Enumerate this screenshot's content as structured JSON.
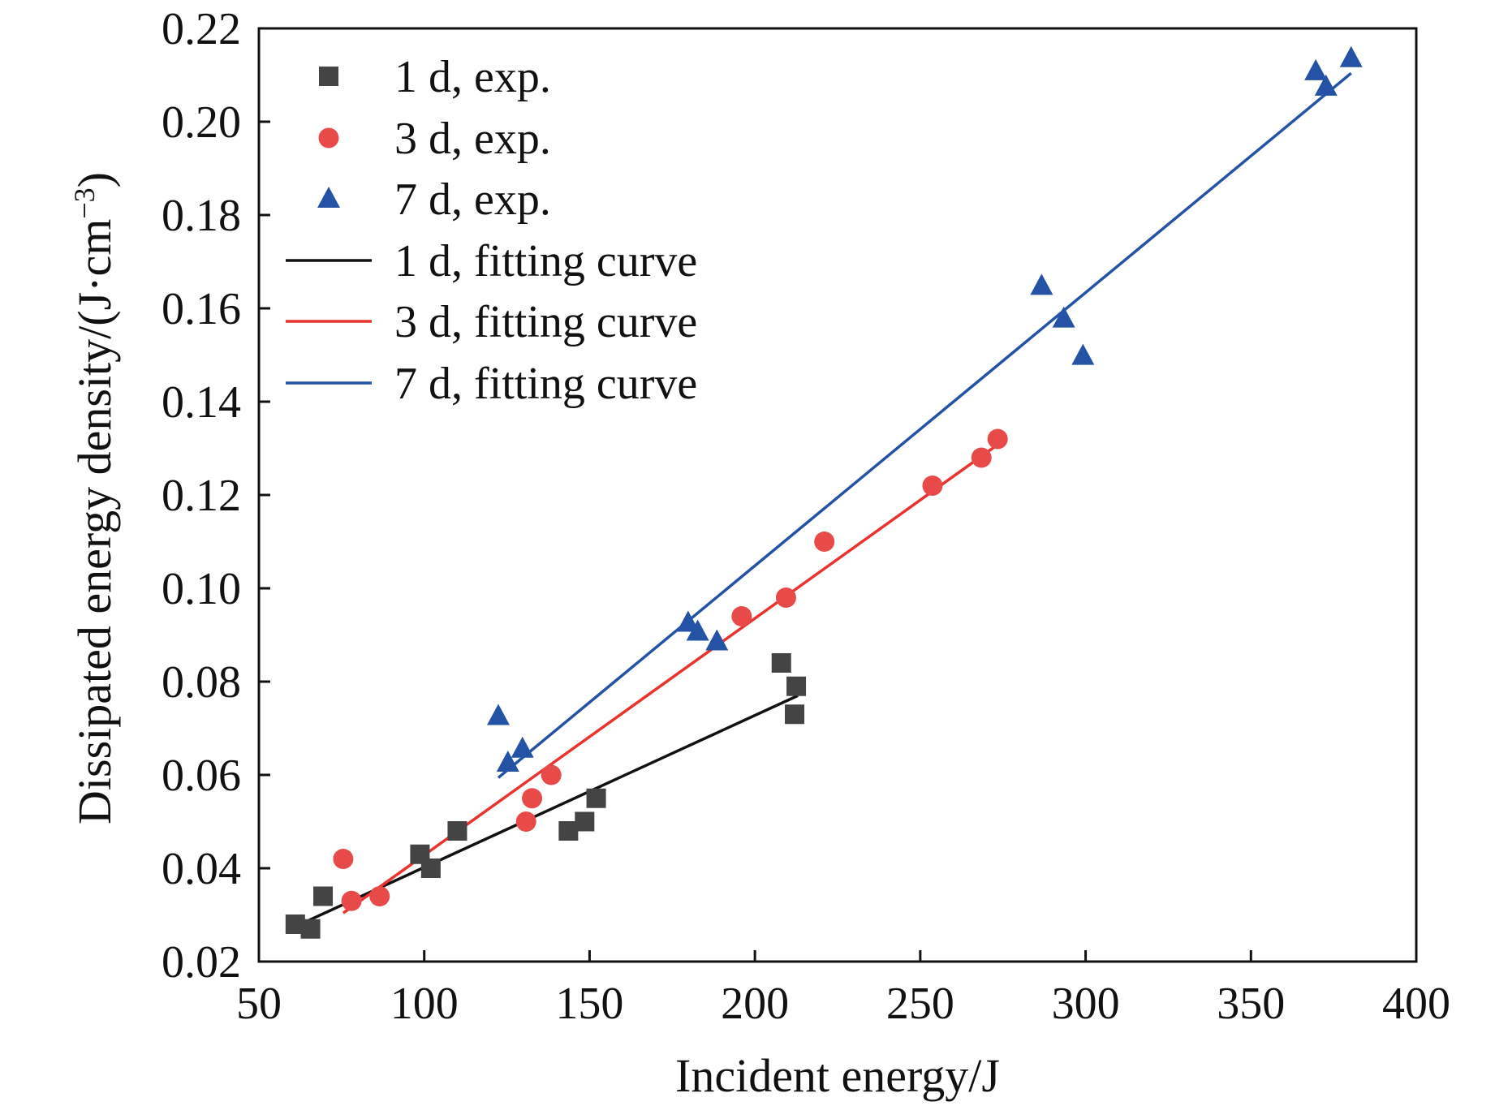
{
  "chart_data": {
    "type": "scatter",
    "xlabel": "Incident energy/J",
    "ylabel_main": "Dissipated energy density/(J·cm",
    "ylabel_sup": "−3",
    "ylabel_close": ")",
    "xlim": [
      50,
      400
    ],
    "ylim": [
      0.02,
      0.22
    ],
    "xticks": [
      "50",
      "100",
      "150",
      "200",
      "250",
      "300",
      "350",
      "400"
    ],
    "yticks": [
      "0.02",
      "0.04",
      "0.06",
      "0.08",
      "0.10",
      "0.12",
      "0.14",
      "0.16",
      "0.18",
      "0.20",
      "0.22"
    ],
    "grid": false,
    "legend_position": "top-left",
    "series": [
      {
        "name": "1 d, exp.",
        "kind": "points",
        "marker": "square",
        "color": "#444444",
        "x": [
          61,
          65.6,
          69.4,
          98.7,
          102,
          110,
          143.6,
          148.5,
          152,
          208,
          212.5,
          212
        ],
        "y": [
          0.028,
          0.027,
          0.034,
          0.043,
          0.04,
          0.048,
          0.048,
          0.05,
          0.055,
          0.084,
          0.079,
          0.073
        ]
      },
      {
        "name": "3 d, exp.",
        "kind": "points",
        "marker": "circle",
        "color": "#e84a4a",
        "x": [
          75.5,
          78,
          86.5,
          130.8,
          132.6,
          138.4,
          196,
          209.4,
          221,
          253.7,
          268.5,
          273.4
        ],
        "y": [
          0.042,
          0.033,
          0.034,
          0.05,
          0.055,
          0.06,
          0.094,
          0.098,
          0.11,
          0.122,
          0.128,
          0.132
        ]
      },
      {
        "name": "7 d, exp.",
        "kind": "points",
        "marker": "triangle",
        "color": "#2453a6",
        "x": [
          122.4,
          125.3,
          129.7,
          179.8,
          182.7,
          188.5,
          286.7,
          293.4,
          299.2,
          369.6,
          372.7,
          380.3
        ],
        "y": [
          0.0726,
          0.0626,
          0.0656,
          0.0926,
          0.0907,
          0.0886,
          0.1648,
          0.1578,
          0.1498,
          0.2108,
          0.2075,
          0.2136
        ]
      },
      {
        "name": "1 d, fitting curve",
        "kind": "line",
        "color": "#111111",
        "x": [
          61,
          213
        ],
        "y": [
          0.0275,
          0.077
        ]
      },
      {
        "name": "3 d, fitting curve",
        "kind": "line",
        "color": "#e8332e",
        "x": [
          75.5,
          275
        ],
        "y": [
          0.0304,
          0.1316
        ]
      },
      {
        "name": "7 d, fitting curve",
        "kind": "line",
        "color": "#2453a6",
        "x": [
          122.4,
          380.3
        ],
        "y": [
          0.0594,
          0.2104
        ]
      }
    ]
  }
}
